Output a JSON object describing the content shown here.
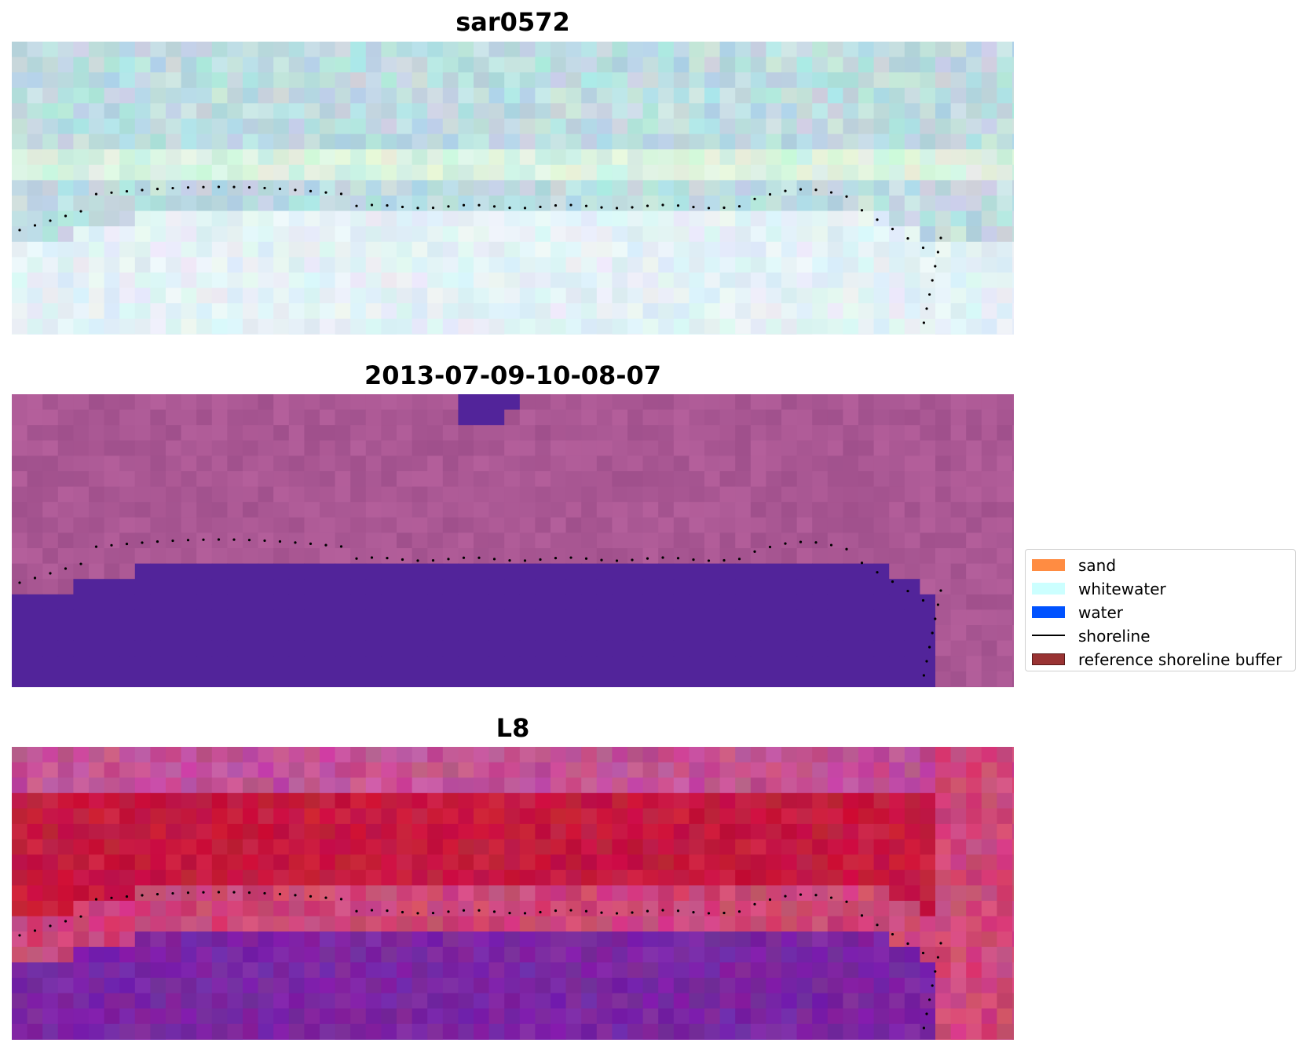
{
  "panels": [
    {
      "title": "sar0572",
      "style": "rgb"
    },
    {
      "title": "2013-07-09-10-08-07",
      "style": "classified"
    },
    {
      "title": "L8",
      "style": "index"
    }
  ],
  "legend": {
    "items": [
      {
        "label": "sand",
        "type": "patch",
        "color": "#ff8c42"
      },
      {
        "label": "whitewater",
        "type": "patch",
        "color": "#ccffff"
      },
      {
        "label": "water",
        "type": "patch",
        "color": "#0052ff"
      },
      {
        "label": "shoreline",
        "type": "line",
        "color": "#000000"
      },
      {
        "label": "reference shoreline buffer",
        "type": "patch",
        "color": "#993333"
      }
    ]
  },
  "colors": {
    "classified_water": "#52249a",
    "classified_background": "#a0558f",
    "index_red": "#c3123d",
    "index_purple": "#7b2a9c",
    "rgb_light": "#d6ecf0"
  }
}
